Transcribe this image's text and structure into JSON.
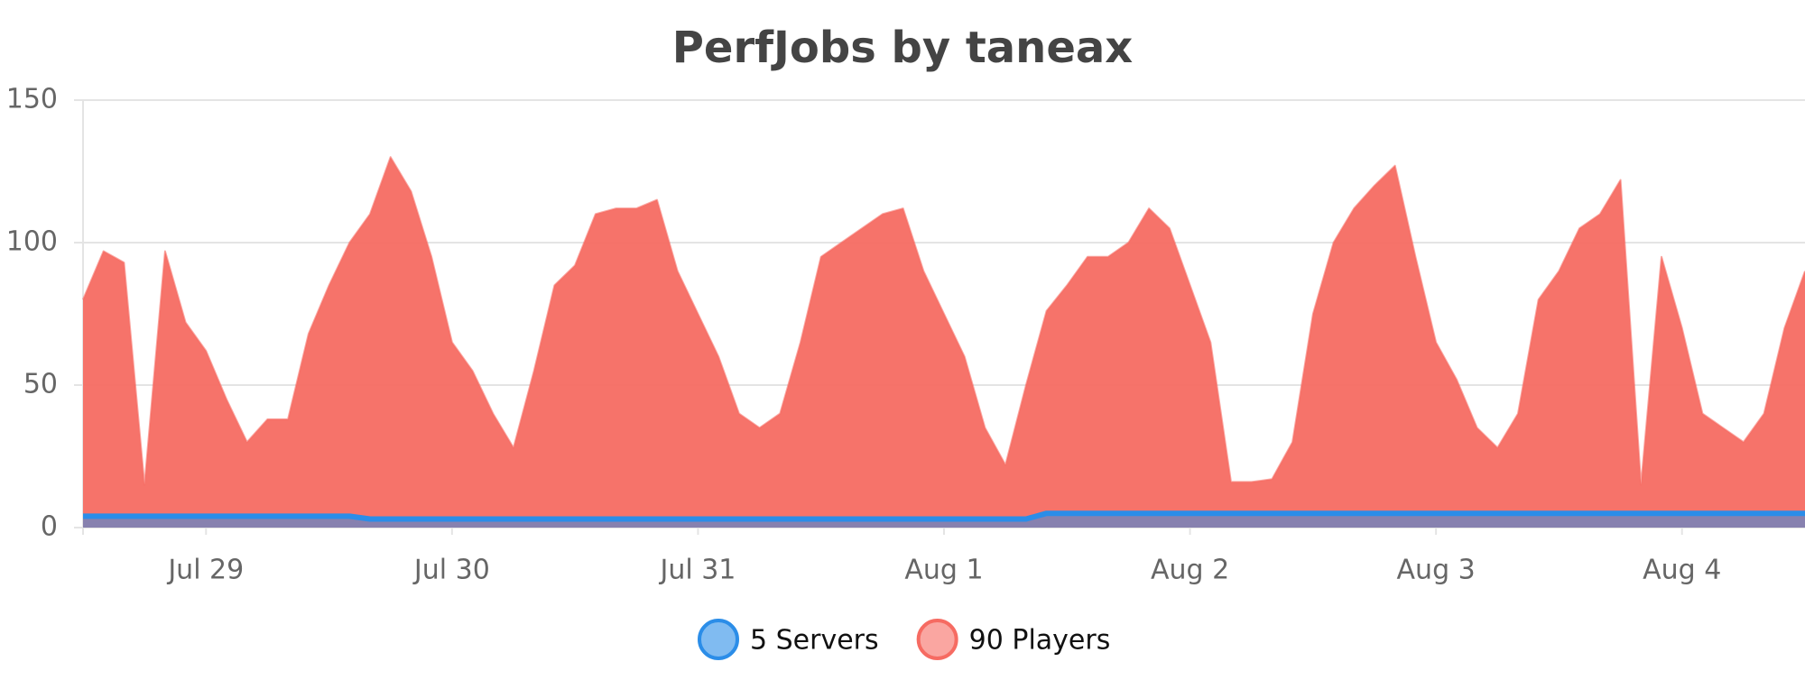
{
  "chart_data": {
    "type": "area",
    "title": "PerfJobs by taneax",
    "categories": [
      null,
      null,
      null,
      null,
      null,
      null,
      "Jul 29",
      null,
      null,
      null,
      null,
      null,
      null,
      null,
      null,
      null,
      null,
      null,
      "Jul 30",
      null,
      null,
      null,
      null,
      null,
      null,
      null,
      null,
      null,
      null,
      null,
      "Jul 31",
      null,
      null,
      null,
      null,
      null,
      null,
      null,
      null,
      null,
      null,
      null,
      "Aug 1",
      null,
      null,
      null,
      null,
      null,
      null,
      null,
      null,
      null,
      null,
      null,
      "Aug 2",
      null,
      null,
      null,
      null,
      null,
      null,
      null,
      null,
      null,
      null,
      null,
      "Aug 3",
      null,
      null,
      null,
      null,
      null,
      null,
      null,
      null,
      null,
      null,
      null,
      "Aug 4",
      null,
      null,
      null,
      null,
      null,
      null
    ],
    "series": [
      {
        "name": "5 Servers",
        "color": "#2b8de8",
        "values": [
          4,
          4,
          4,
          4,
          4,
          4,
          4,
          4,
          4,
          4,
          4,
          4,
          4,
          4,
          3,
          3,
          3,
          3,
          3,
          3,
          3,
          3,
          3,
          3,
          3,
          3,
          3,
          3,
          3,
          3,
          3,
          3,
          3,
          3,
          3,
          3,
          3,
          3,
          3,
          3,
          3,
          3,
          3,
          3,
          3,
          3,
          3,
          5,
          5,
          5,
          5,
          5,
          5,
          5,
          5,
          5,
          5,
          5,
          5,
          5,
          5,
          5,
          5,
          5,
          5,
          5,
          5,
          5,
          5,
          5,
          5,
          5,
          5,
          5,
          5,
          5,
          5,
          5,
          5,
          5,
          5,
          5,
          5,
          5,
          5
        ]
      },
      {
        "name": "90 Players",
        "color": "#f66b62",
        "values": [
          80,
          97,
          93,
          15,
          97,
          72,
          62,
          45,
          30,
          38,
          38,
          68,
          85,
          100,
          110,
          130,
          118,
          95,
          65,
          55,
          40,
          28,
          55,
          85,
          92,
          110,
          112,
          112,
          115,
          90,
          75,
          60,
          40,
          35,
          40,
          65,
          95,
          100,
          105,
          110,
          112,
          90,
          75,
          60,
          35,
          22,
          50,
          76,
          85,
          95,
          95,
          100,
          112,
          105,
          85,
          65,
          16,
          16,
          17,
          30,
          75,
          100,
          112,
          120,
          127,
          95,
          65,
          52,
          35,
          28,
          40,
          80,
          90,
          105,
          110,
          122,
          15,
          95,
          70,
          40,
          35,
          30,
          40,
          70,
          90
        ]
      }
    ],
    "ylim": [
      0,
      150
    ],
    "yticks": [
      0,
      50,
      100,
      150
    ],
    "grid": true
  }
}
